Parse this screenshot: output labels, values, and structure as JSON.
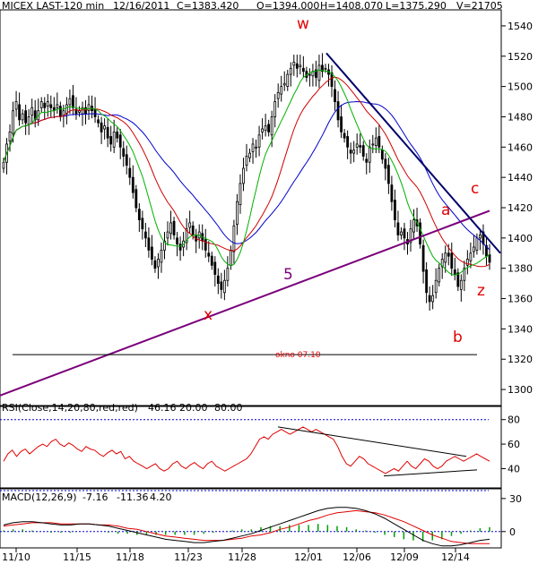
{
  "header": {
    "symbol": "MICEX LAST-120 min",
    "date": "12/16/2011",
    "close": "C=1383.420",
    "open": "O=1394.000",
    "high": "H=1408.070",
    "low": "L=1375.290",
    "volume": "V=21705"
  },
  "colors": {
    "bull": "#000000",
    "bear": "#000000",
    "ma_short": "#00b000",
    "ma_mid": "#d00000",
    "ma_long": "#0000cc",
    "trend": "#7a007a",
    "resistance": "#00006a",
    "annot": "#e00000",
    "rsi_line": "#e00000",
    "macd_line": "#000000",
    "signal_line": "#e00000",
    "hist": "#00a000"
  },
  "annotations": {
    "w": "w",
    "x": "x",
    "five": "5",
    "a": "a",
    "b": "b",
    "c": "c",
    "z": "z",
    "gap": "okno 07.10"
  },
  "rsi_panel": {
    "label": "RSI(Close,14,20,80,red,red)",
    "value": "46.16",
    "lower": "20.00",
    "upper": "80.00"
  },
  "macd_panel": {
    "label": "MACD(12,26,9)",
    "macd": "-7.16",
    "signal": "-11.36",
    "hist": "4.20"
  },
  "chart_data": [
    {
      "type": "candlestick",
      "title": "MICEX LAST-120 min",
      "ylim": [
        1290,
        1550
      ],
      "y_ticks": [
        1300,
        1320,
        1340,
        1360,
        1380,
        1400,
        1420,
        1440,
        1460,
        1480,
        1500,
        1520,
        1540
      ],
      "x_ticks": [
        "11/10",
        "11/15",
        "11/18",
        "11/23",
        "11/28",
        "12/01",
        "12/06",
        "12/09",
        "12/14"
      ],
      "closes": [
        1450,
        1462,
        1470,
        1484,
        1490,
        1478,
        1482,
        1476,
        1480,
        1486,
        1478,
        1484,
        1490,
        1486,
        1490,
        1486,
        1484,
        1488,
        1480,
        1484,
        1488,
        1492,
        1486,
        1482,
        1484,
        1486,
        1482,
        1488,
        1484,
        1480,
        1476,
        1470,
        1474,
        1466,
        1462,
        1470,
        1466,
        1460,
        1454,
        1448,
        1440,
        1430,
        1420,
        1412,
        1406,
        1400,
        1392,
        1386,
        1380,
        1386,
        1392,
        1398,
        1404,
        1410,
        1402,
        1396,
        1392,
        1398,
        1406,
        1410,
        1402,
        1398,
        1404,
        1398,
        1392,
        1388,
        1382,
        1376,
        1370,
        1366,
        1372,
        1380,
        1392,
        1408,
        1424,
        1436,
        1446,
        1454,
        1456,
        1462,
        1460,
        1468,
        1472,
        1474,
        1470,
        1480,
        1490,
        1496,
        1500,
        1502,
        1508,
        1512,
        1516,
        1512,
        1514,
        1510,
        1506,
        1508,
        1510,
        1506,
        1514,
        1510,
        1512,
        1508,
        1500,
        1490,
        1478,
        1470,
        1466,
        1460,
        1456,
        1458,
        1462,
        1460,
        1454,
        1450,
        1460,
        1462,
        1466,
        1460,
        1452,
        1446,
        1436,
        1424,
        1412,
        1402,
        1404,
        1400,
        1396,
        1406,
        1412,
        1408,
        1396,
        1378,
        1364,
        1358,
        1362,
        1372,
        1380,
        1386,
        1390,
        1388,
        1380,
        1376,
        1368,
        1372,
        1380,
        1386,
        1390,
        1394,
        1400,
        1402,
        1396,
        1388,
        1384
      ],
      "series": [
        {
          "name": "MA short"
        },
        {
          "name": "MA mid"
        },
        {
          "name": "MA long"
        }
      ]
    },
    {
      "type": "line",
      "title": "RSI(Close,14,20,80,red,red)",
      "ylim": [
        25,
        90
      ],
      "y_ticks": [
        40,
        60,
        80
      ],
      "levels": [
        20,
        80
      ],
      "values": [
        46,
        52,
        55,
        50,
        54,
        56,
        52,
        55,
        58,
        60,
        58,
        62,
        64,
        60,
        58,
        61,
        59,
        56,
        54,
        58,
        56,
        55,
        52,
        50,
        53,
        55,
        52,
        54,
        48,
        50,
        46,
        44,
        42,
        40,
        42,
        44,
        40,
        38,
        40,
        44,
        46,
        42,
        40,
        43,
        45,
        42,
        40,
        44,
        46,
        42,
        40,
        38,
        40,
        42,
        44,
        46,
        48,
        52,
        58,
        64,
        66,
        64,
        68,
        70,
        72,
        70,
        68,
        70,
        72,
        74,
        72,
        70,
        72,
        70,
        68,
        66,
        64,
        58,
        50,
        44,
        42,
        46,
        50,
        48,
        44,
        42,
        40,
        38,
        36,
        38,
        40,
        38,
        42,
        46,
        42,
        40,
        44,
        48,
        46,
        42,
        40,
        42,
        46,
        48,
        50,
        48,
        46,
        48,
        50,
        52,
        50,
        48,
        46
      ],
      "upper_trendline": [
        74,
        50
      ],
      "lower_trendline": [
        34,
        39
      ]
    },
    {
      "type": "line",
      "title": "MACD(12,26,9)",
      "ylim": [
        -14,
        38
      ],
      "y_ticks": [
        0,
        30
      ],
      "series": [
        {
          "name": "MACD",
          "values": [
            6,
            8,
            9,
            9,
            8,
            7,
            6,
            6,
            7,
            7,
            6,
            5,
            3,
            1,
            -1,
            -3,
            -5,
            -7,
            -8,
            -9,
            -10,
            -10,
            -9,
            -8,
            -6,
            -4,
            -2,
            1,
            4,
            7,
            10,
            13,
            16,
            19,
            21,
            22,
            22,
            21,
            19,
            16,
            12,
            7,
            2,
            -3,
            -8,
            -11,
            -13,
            -13,
            -12,
            -10,
            -8,
            -7
          ]
        },
        {
          "name": "Signal",
          "values": [
            5,
            6,
            7,
            8,
            8,
            8,
            7,
            7,
            7,
            7,
            6,
            6,
            5,
            3,
            2,
            0,
            -2,
            -4,
            -5,
            -6,
            -7,
            -8,
            -8,
            -8,
            -7,
            -6,
            -4,
            -3,
            -1,
            2,
            4,
            7,
            10,
            12,
            15,
            17,
            18,
            19,
            18,
            17,
            15,
            12,
            9,
            5,
            1,
            -3,
            -6,
            -9,
            -10,
            -11,
            -11,
            -11
          ]
        }
      ]
    }
  ]
}
